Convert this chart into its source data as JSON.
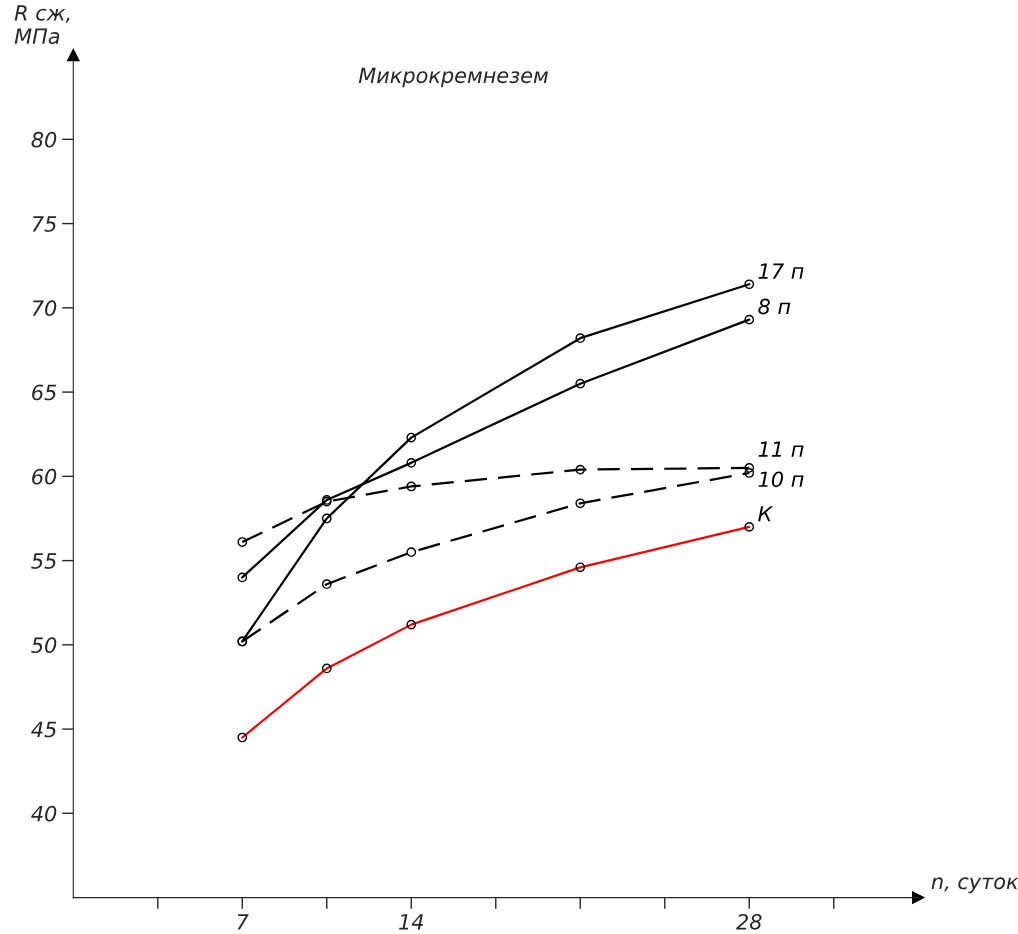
{
  "chart_data": {
    "type": "line",
    "title": "Микрокремнезем",
    "xlabel": "n, суток",
    "ylabel": "R сж,\nМПа",
    "xlim": [
      0,
      35
    ],
    "ylim": [
      35,
      85
    ],
    "xticks": [
      {
        "value": 3.5,
        "label": null
      },
      7,
      14,
      {
        "value": 10.5,
        "label": null
      },
      {
        "value": 17.5,
        "label": null
      },
      {
        "value": 21,
        "label": null
      },
      {
        "value": 24.5,
        "label": null
      },
      28,
      {
        "value": 31.5,
        "label": null
      }
    ],
    "yticks": [
      40,
      45,
      50,
      55,
      60,
      65,
      70,
      75,
      80
    ],
    "grid": false,
    "legend": false,
    "marker": "circle",
    "series": [
      {
        "name": "17 п",
        "color": "#000000",
        "line_style": "solid",
        "x": [
          7,
          10.5,
          14,
          21,
          28
        ],
        "values": [
          50.2,
          57.5,
          62.3,
          68.2,
          71.4
        ]
      },
      {
        "name": "8 п",
        "color": "#000000",
        "line_style": "solid",
        "x": [
          7,
          10.5,
          14,
          21,
          28
        ],
        "values": [
          54.0,
          58.6,
          60.8,
          65.5,
          69.3
        ]
      },
      {
        "name": "11 п",
        "color": "#000000",
        "line_style": "dashed",
        "x": [
          7,
          10.5,
          14,
          21,
          28
        ],
        "values": [
          56.1,
          58.5,
          59.4,
          60.4,
          60.5
        ]
      },
      {
        "name": "10 п",
        "color": "#000000",
        "line_style": "dashed",
        "x": [
          7,
          10.5,
          14,
          21,
          28
        ],
        "values": [
          50.2,
          53.6,
          55.5,
          58.4,
          60.2
        ]
      },
      {
        "name": "К",
        "color": "#ff0000",
        "line_style": "solid",
        "x": [
          7,
          10.5,
          14,
          21,
          28
        ],
        "values": [
          44.5,
          48.6,
          51.2,
          54.6,
          57.0
        ]
      }
    ]
  }
}
